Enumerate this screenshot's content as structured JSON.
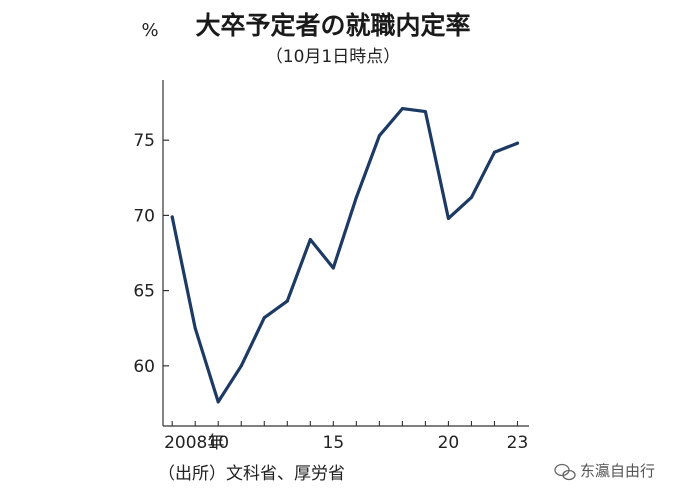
{
  "chart_data": {
    "type": "line",
    "title": "大卒予定者の就職内定率",
    "subtitle": "（10月1日時点）",
    "ylabel": "%",
    "source": "（出所）文科省、厚労省",
    "x": [
      2008,
      2009,
      2010,
      2011,
      2012,
      2013,
      2014,
      2015,
      2016,
      2017,
      2018,
      2019,
      2020,
      2021,
      2022,
      2023
    ],
    "x_tick_values": [
      2008,
      2010,
      2015,
      2020,
      2023
    ],
    "x_tick_labels": [
      "2008年",
      "10",
      "15",
      "20",
      "23"
    ],
    "y_ticks": [
      60,
      65,
      70,
      75
    ],
    "ylim": [
      56,
      79
    ],
    "xlim": [
      2007.6,
      2023.5
    ],
    "series": [
      {
        "values": [
          69.9,
          62.5,
          57.6,
          60.0,
          63.2,
          64.3,
          68.4,
          66.5,
          71.2,
          75.3,
          77.1,
          76.9,
          69.8,
          71.2,
          74.2,
          74.8
        ],
        "color": "#1c3a63"
      }
    ],
    "grid": false,
    "legend": "none"
  },
  "watermark": "东瀛自由行",
  "watermark_icon": "wechat-icon"
}
